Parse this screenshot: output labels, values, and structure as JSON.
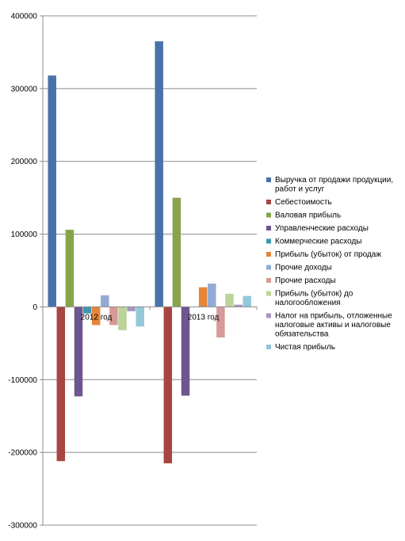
{
  "chart_data": {
    "type": "bar",
    "title": "",
    "xlabel": "",
    "ylabel": "",
    "ylim": [
      -300000,
      400000
    ],
    "yticks": [
      -300000,
      -200000,
      -100000,
      0,
      100000,
      200000,
      300000,
      400000
    ],
    "yticks_text": [
      "-300000",
      "-200000",
      "-100000",
      "0",
      "100000",
      "200000",
      "300000",
      "400000"
    ],
    "grid": true,
    "legend_position": "right",
    "categories": [
      "2012 год",
      "2013 год"
    ],
    "series": [
      {
        "name": "Выручка от продажи продукции, работ и услуг",
        "color": "#4a72aa",
        "values": [
          318000,
          365000
        ]
      },
      {
        "name": "Себестоимость",
        "color": "#a84542",
        "values": [
          -212000,
          -215000
        ]
      },
      {
        "name": "Валовая прибыль",
        "color": "#87a44b",
        "values": [
          106000,
          150000
        ]
      },
      {
        "name": "Управленческие расходы",
        "color": "#6e568e",
        "values": [
          -123000,
          -122000
        ]
      },
      {
        "name": "Коммерческие расходы",
        "color": "#3c97b0",
        "values": [
          -9000,
          0
        ]
      },
      {
        "name": "Прибыль (убыток) от продаж",
        "color": "#e48539",
        "values": [
          -25000,
          27000
        ]
      },
      {
        "name": "Прочие доходы",
        "color": "#93aad3",
        "values": [
          16000,
          32000
        ]
      },
      {
        "name": "Прочие расходы",
        "color": "#d79a98",
        "values": [
          -25000,
          -42000
        ]
      },
      {
        "name": "Прибыль (убыток) до налогообложения",
        "color": "#bcd39a",
        "values": [
          -32000,
          18000
        ]
      },
      {
        "name": "Налог на прибыль, отложенные налоговые активы и налоговые обязательства",
        "color": "#a796be",
        "values": [
          -6000,
          3000
        ]
      },
      {
        "name": "Чистая прибыль",
        "color": "#93c8d8",
        "values": [
          -27000,
          15000
        ]
      }
    ]
  }
}
